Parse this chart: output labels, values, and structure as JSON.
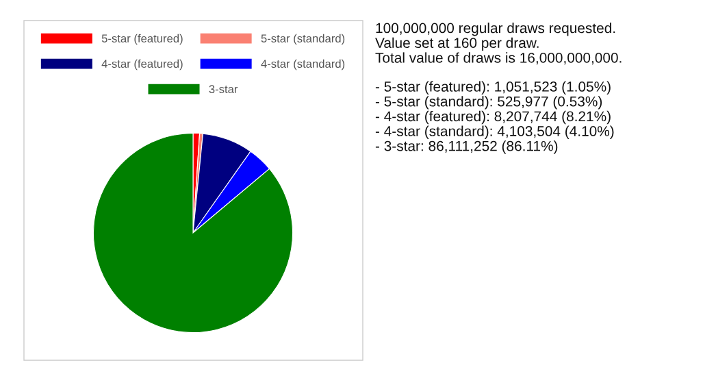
{
  "chart_data": [
    {
      "type": "pie",
      "categories": [
        "5-star (featured)",
        "5-star (standard)",
        "4-star (featured)",
        "4-star (standard)",
        "3-star"
      ],
      "values": [
        1.05,
        0.53,
        8.21,
        4.1,
        86.11
      ],
      "colors": [
        "#ff0000",
        "#fa8072",
        "#000080",
        "#0000ff",
        "#008000"
      ],
      "legend": "top"
    },
    {
      "type": "other",
      "annotations": [
        "100,000,000 regular draws requested.\nValue set at 160 per draw.\nTotal value of draws is 16,000,000,000.",
        "- 5-star (featured): 1,051,523 (1.05%)\n- 5-star (standard): 525,977 (0.53%)\n- 4-star (featured): 8,207,744 (8.21%)\n- 4-star (standard): 4,103,504 (4.10%)\n- 3-star: 86,111,252 (86.11%)"
      ]
    }
  ]
}
